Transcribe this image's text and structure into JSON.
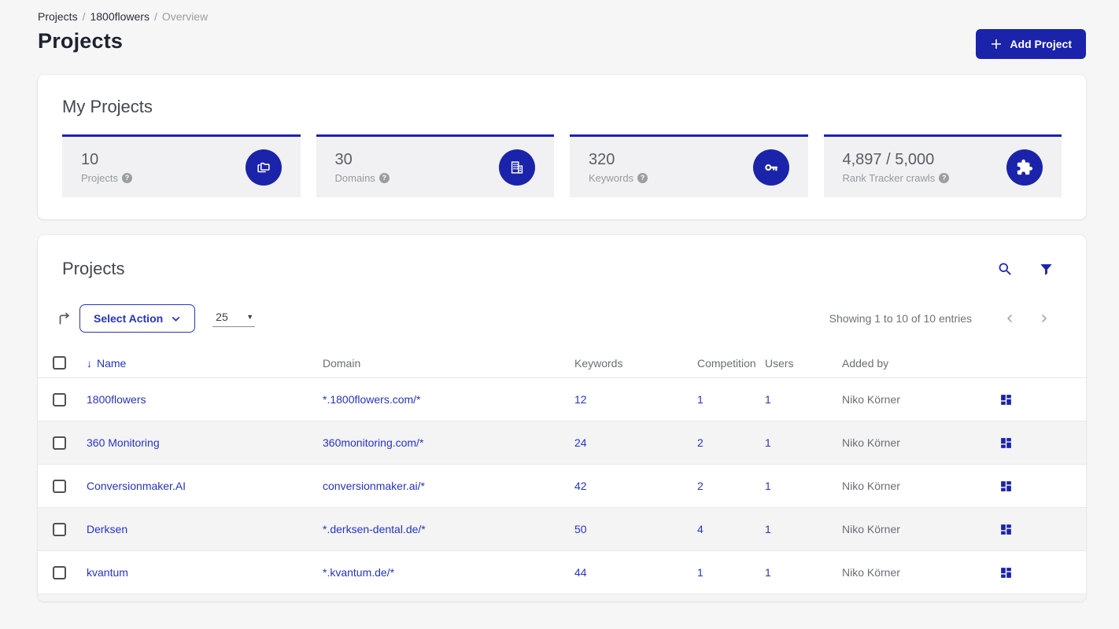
{
  "breadcrumb": {
    "items": [
      "Projects",
      "1800flowers",
      "Overview"
    ],
    "separator": "/"
  },
  "page": {
    "title": "Projects"
  },
  "header": {
    "add_project_label": "Add Project"
  },
  "my_projects": {
    "title": "My Projects",
    "stats": [
      {
        "value": "10",
        "label": "Projects",
        "icon": "projects-folders-icon"
      },
      {
        "value": "30",
        "label": "Domains",
        "icon": "domains-building-icon"
      },
      {
        "value": "320",
        "label": "Keywords",
        "icon": "keywords-key-icon"
      },
      {
        "value": "4,897 / 5,000",
        "label": "Rank Tracker crawls",
        "icon": "crawls-puzzle-icon"
      }
    ]
  },
  "projects_panel": {
    "title": "Projects",
    "toolbar": {
      "select_action_label": "Select Action",
      "page_size": "25",
      "showing_text": "Showing 1 to 10 of 10 entries"
    },
    "table": {
      "columns": {
        "name": "Name",
        "domain": "Domain",
        "keywords": "Keywords",
        "competition": "Competition",
        "users": "Users",
        "added_by": "Added by"
      },
      "sorted_column": "Name",
      "rows": [
        {
          "name": "1800flowers",
          "domain": "*.1800flowers.com/*",
          "keywords": "12",
          "competition": "1",
          "users": "1",
          "added_by": "Niko Körner"
        },
        {
          "name": "360 Monitoring",
          "domain": "360monitoring.com/*",
          "keywords": "24",
          "competition": "2",
          "users": "1",
          "added_by": "Niko Körner"
        },
        {
          "name": "Conversionmaker.AI",
          "domain": "conversionmaker.ai/*",
          "keywords": "42",
          "competition": "2",
          "users": "1",
          "added_by": "Niko Körner"
        },
        {
          "name": "Derksen",
          "domain": "*.derksen-dental.de/*",
          "keywords": "50",
          "competition": "4",
          "users": "1",
          "added_by": "Niko Körner"
        },
        {
          "name": "kvantum",
          "domain": "*.kvantum.de/*",
          "keywords": "44",
          "competition": "1",
          "users": "1",
          "added_by": "Niko Körner"
        }
      ]
    }
  },
  "colors": {
    "primary_blue": "#1b23aa",
    "link_blue": "#2633c5",
    "stat_card_bg": "#f1f1f3",
    "zebra_row_bg": "#f4f4f5"
  }
}
